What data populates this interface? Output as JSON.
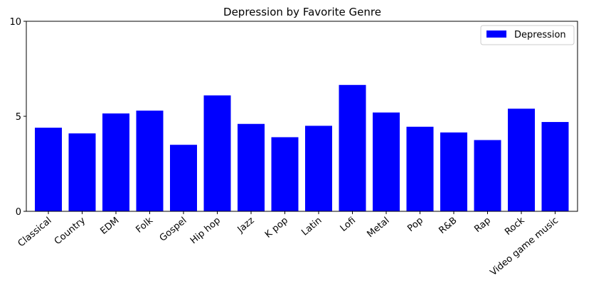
{
  "chart_data": {
    "type": "bar",
    "title": "Depression by Favorite Genre",
    "xlabel": "",
    "ylabel": "",
    "categories": [
      "Classical",
      "Country",
      "EDM",
      "Folk",
      "Gospel",
      "Hip hop",
      "Jazz",
      "K pop",
      "Latin",
      "Lofi",
      "Metal",
      "Pop",
      "R&B",
      "Rap",
      "Rock",
      "Video game music"
    ],
    "series": [
      {
        "name": "Depression",
        "color": "#0000ff",
        "values": [
          4.4,
          4.1,
          5.15,
          5.3,
          3.5,
          6.1,
          4.6,
          3.9,
          4.5,
          6.65,
          5.2,
          4.45,
          4.15,
          3.75,
          5.4,
          4.7
        ]
      }
    ],
    "ylim": [
      0,
      10
    ],
    "yticks": [
      "0",
      "5",
      "10"
    ],
    "grid": false,
    "legend_position": "top-right"
  }
}
